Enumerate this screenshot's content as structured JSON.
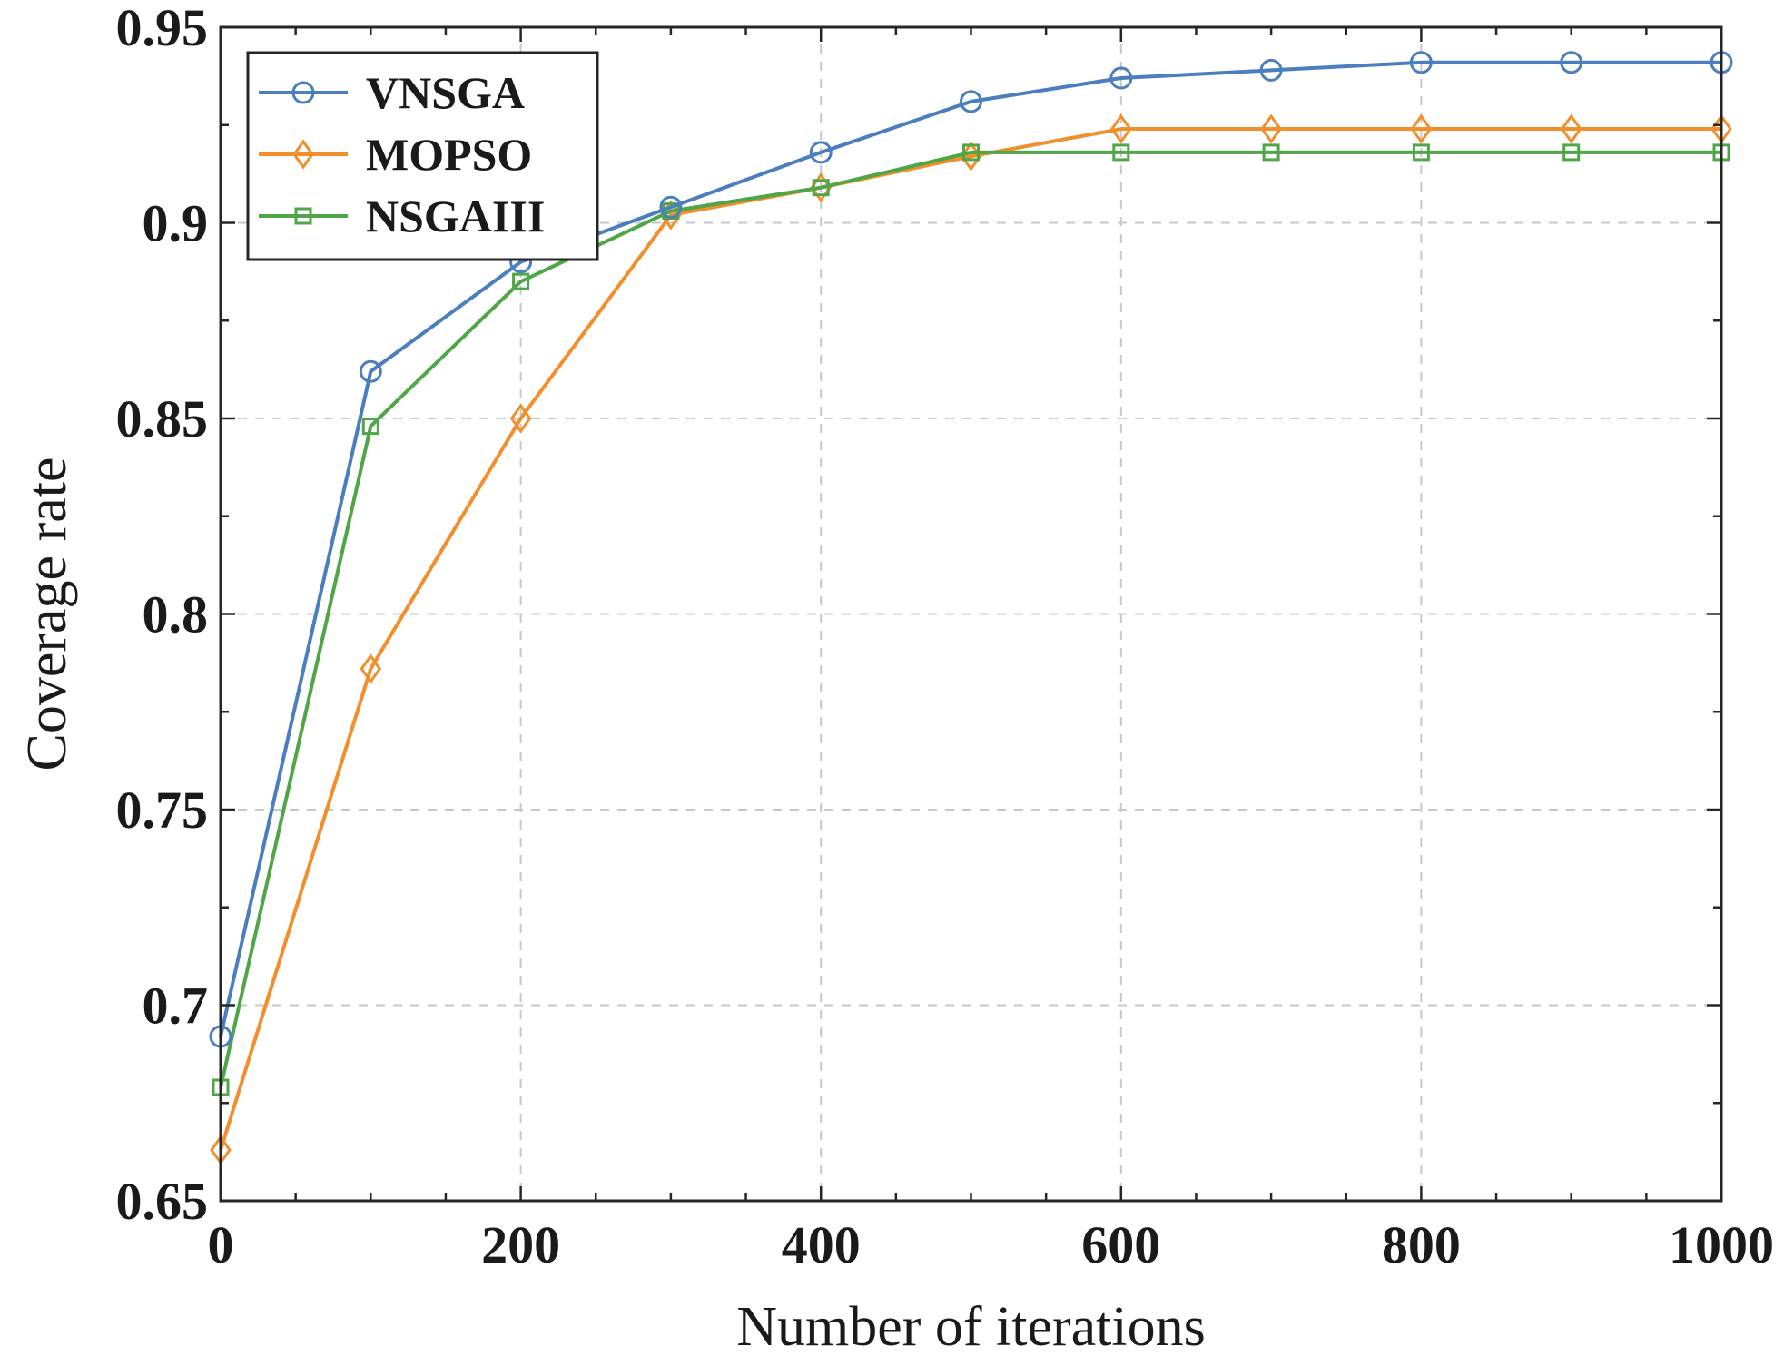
{
  "chart_data": {
    "type": "line",
    "title": "",
    "xlabel": "Number of iterations",
    "ylabel": "Coverage rate",
    "xlim": [
      0,
      1000
    ],
    "ylim": [
      0.65,
      0.95
    ],
    "x_ticks": [
      0,
      200,
      400,
      600,
      800,
      1000
    ],
    "x_tick_labels": [
      "0",
      "200",
      "400",
      "600",
      "800",
      "1000"
    ],
    "y_ticks": [
      0.65,
      0.7,
      0.75,
      0.8,
      0.85,
      0.9,
      0.95
    ],
    "y_tick_labels": [
      "0.65",
      "0.7",
      "0.75",
      "0.8",
      "0.85",
      "0.9",
      "0.95"
    ],
    "grid": true,
    "legend_position": "top-left",
    "x": [
      0,
      100,
      200,
      300,
      400,
      500,
      600,
      700,
      800,
      900,
      1000
    ],
    "series": [
      {
        "name": "VNSGA",
        "color": "#4a7ebf",
        "marker": "circle",
        "values": [
          0.692,
          0.862,
          0.89,
          0.904,
          0.918,
          0.931,
          0.937,
          0.939,
          0.941,
          0.941,
          0.941
        ]
      },
      {
        "name": "MOPSO",
        "color": "#f28e2b",
        "marker": "diamond",
        "values": [
          0.663,
          0.786,
          0.85,
          0.902,
          0.909,
          0.917,
          0.924,
          0.924,
          0.924,
          0.924,
          0.924
        ]
      },
      {
        "name": "NSGAIII",
        "color": "#4ea646",
        "marker": "square",
        "values": [
          0.679,
          0.848,
          0.885,
          0.903,
          0.909,
          0.918,
          0.918,
          0.918,
          0.918,
          0.918,
          0.918
        ]
      }
    ]
  }
}
